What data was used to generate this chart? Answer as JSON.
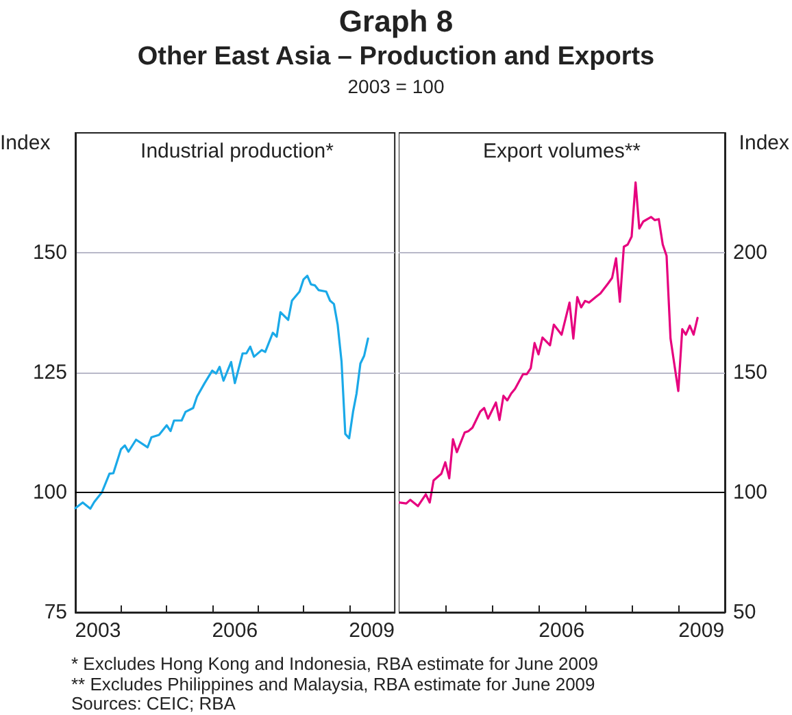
{
  "chart_data": [
    {
      "type": "line",
      "title": "Graph 8",
      "subtitle": "Other East Asia – Production and Exports",
      "annotations": [
        "2003 = 100"
      ],
      "ylabel": "Index",
      "grid": "y",
      "xlim": [
        "2003-01",
        "2010-01"
      ],
      "xticks": [
        {
          "value": "2004-01",
          "label": null
        },
        {
          "value": "2005-01",
          "label": null
        },
        {
          "value": "2006-01",
          "label": null
        },
        {
          "value": "2007-01",
          "label": null
        },
        {
          "value": "2008-01",
          "label": null
        },
        {
          "value": "2009-01",
          "label": null
        },
        {
          "value": "2003-07",
          "label": "2003"
        },
        {
          "value": "2006-07",
          "label": "2006"
        },
        {
          "value": "2009-07",
          "label": "2009"
        }
      ],
      "ylim": [
        75,
        175
      ],
      "yticks": [
        75,
        100,
        125,
        150
      ],
      "ref_lines": [
        {
          "axis": "y",
          "value": 100,
          "color": "#000000"
        }
      ],
      "series": [
        {
          "name": "Industrial production*",
          "color": "#1aa9e8",
          "x": [
            "2003-01",
            "2003-03",
            "2003-05",
            "2003-06",
            "2003-08",
            "2003-10",
            "2003-11",
            "2004-01",
            "2004-02",
            "2004-03",
            "2004-05",
            "2004-08",
            "2004-09",
            "2004-11",
            "2005-01",
            "2005-02",
            "2005-03",
            "2005-05",
            "2005-06",
            "2005-08",
            "2005-09",
            "2005-11",
            "2006-01",
            "2006-02",
            "2006-03",
            "2006-04",
            "2006-06",
            "2006-07",
            "2006-09",
            "2006-10",
            "2006-11",
            "2006-12",
            "2007-02",
            "2007-03",
            "2007-05",
            "2007-06",
            "2007-07",
            "2007-09",
            "2007-10",
            "2007-12",
            "2008-01",
            "2008-02",
            "2008-03",
            "2008-04",
            "2008-05",
            "2008-07",
            "2008-08",
            "2008-09",
            "2008-10",
            "2008-11",
            "2008-12",
            "2009-01",
            "2009-02",
            "2009-03",
            "2009-04",
            "2009-05",
            "2009-06"
          ],
          "values": [
            96.7,
            97.9,
            96.6,
            98,
            100,
            103.9,
            104,
            109,
            109.8,
            108.5,
            111,
            109.4,
            111.5,
            112,
            114,
            112.8,
            115,
            115,
            116.8,
            117.6,
            120,
            122.8,
            125.4,
            124.8,
            126.2,
            123.3,
            127.2,
            122.8,
            129,
            129,
            130.4,
            128.3,
            129.7,
            129.3,
            133.3,
            132.5,
            137.6,
            136,
            140,
            141.9,
            144.4,
            145.2,
            143.4,
            143.2,
            142.2,
            141.9,
            140,
            139.3,
            135,
            127.3,
            112.2,
            111.3,
            116.8,
            120.6,
            126.9,
            128.5,
            132.1
          ]
        }
      ]
    },
    {
      "type": "line",
      "ylabel": "Index",
      "grid": "y",
      "annotations": [
        "* Excludes Hong Kong and Indonesia, RBA estimate for June 2009",
        "** Excludes Philippines and Malaysia, RBA estimate for June 2009",
        "Sources: CEIC; RBA"
      ],
      "xlim": [
        "2003-01",
        "2010-01"
      ],
      "xticks": [
        {
          "value": "2004-01",
          "label": null
        },
        {
          "value": "2005-01",
          "label": null
        },
        {
          "value": "2006-01",
          "label": null
        },
        {
          "value": "2007-01",
          "label": null
        },
        {
          "value": "2008-01",
          "label": null
        },
        {
          "value": "2009-01",
          "label": null
        },
        {
          "value": "2006-07",
          "label": "2006"
        },
        {
          "value": "2009-07",
          "label": "2009"
        }
      ],
      "ylim": [
        50,
        250
      ],
      "yticks": [
        50,
        100,
        150,
        200
      ],
      "ref_lines": [
        {
          "axis": "y",
          "value": 100,
          "color": "#000000"
        }
      ],
      "series": [
        {
          "name": "Export volumes**",
          "color": "#e6007e",
          "x": [
            "2003-01",
            "2003-03",
            "2003-04",
            "2003-06",
            "2003-08",
            "2003-09",
            "2003-10",
            "2003-12",
            "2004-01",
            "2004-02",
            "2004-03",
            "2004-04",
            "2004-06",
            "2004-07",
            "2004-08",
            "2004-10",
            "2004-11",
            "2004-12",
            "2005-02",
            "2005-03",
            "2005-04",
            "2005-05",
            "2005-06",
            "2005-07",
            "2005-09",
            "2005-10",
            "2005-11",
            "2005-12",
            "2006-01",
            "2006-02",
            "2006-04",
            "2006-05",
            "2006-07",
            "2006-09",
            "2006-10",
            "2006-11",
            "2006-12",
            "2007-01",
            "2007-02",
            "2007-04",
            "2007-05",
            "2007-07",
            "2007-08",
            "2007-09",
            "2007-10",
            "2007-11",
            "2007-12",
            "2008-01",
            "2008-02",
            "2008-03",
            "2008-04",
            "2008-06",
            "2008-07",
            "2008-08",
            "2008-09",
            "2008-10",
            "2008-11",
            "2009-01",
            "2009-02",
            "2009-03",
            "2009-04",
            "2009-05",
            "2009-06"
          ],
          "values": [
            95.8,
            95.4,
            96.9,
            94.3,
            99.2,
            95.8,
            105,
            107.8,
            112.6,
            105.9,
            122.2,
            116.8,
            125,
            125.6,
            127,
            133.7,
            135.2,
            130.8,
            137.5,
            130.2,
            140.3,
            138.4,
            141.3,
            143.2,
            149.3,
            149.3,
            151.8,
            162.3,
            157.6,
            164.6,
            161.4,
            170,
            165.8,
            179.2,
            164.2,
            181.5,
            177.2,
            179.9,
            179.2,
            181.8,
            183,
            187.2,
            189.5,
            197.7,
            179.5,
            202.5,
            203.4,
            206.7,
            229.3,
            210.1,
            213,
            214.9,
            213.6,
            214,
            203.4,
            198.7,
            164.2,
            142.3,
            168.1,
            165.8,
            169.6,
            165.8,
            172.8
          ]
        }
      ]
    }
  ]
}
